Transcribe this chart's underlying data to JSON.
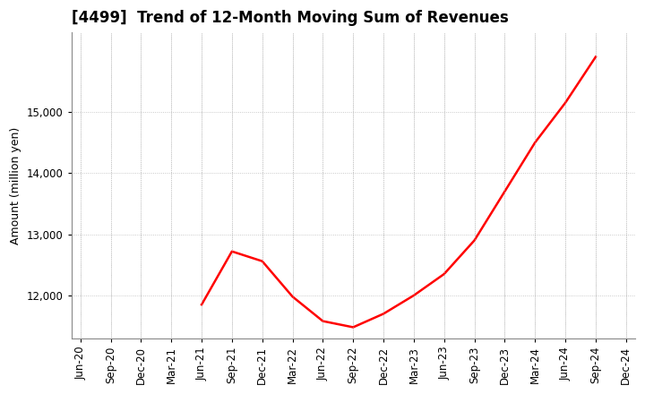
{
  "title": "[4499]  Trend of 12-Month Moving Sum of Revenues",
  "ylabel": "Amount (million yen)",
  "line_color": "#FF0000",
  "line_width": 1.8,
  "background_color": "#FFFFFF",
  "grid_color": "#BBBBBB",
  "x_labels": [
    "Jun-20",
    "Sep-20",
    "Dec-20",
    "Mar-21",
    "Jun-21",
    "Sep-21",
    "Dec-21",
    "Mar-22",
    "Jun-22",
    "Sep-22",
    "Dec-22",
    "Mar-23",
    "Jun-23",
    "Sep-23",
    "Dec-23",
    "Mar-24",
    "Jun-24",
    "Sep-24",
    "Dec-24"
  ],
  "data_x_indices": [
    4,
    5,
    6,
    7,
    8,
    9,
    10,
    11,
    12,
    13,
    14,
    15,
    16,
    17
  ],
  "data_y_values": [
    11850,
    12720,
    12560,
    11980,
    11580,
    11480,
    11700,
    12000,
    12350,
    12900,
    13700,
    14500,
    15150,
    15900
  ],
  "ylim_min": 11300,
  "ylim_max": 16300,
  "yticks": [
    12000,
    13000,
    14000,
    15000
  ],
  "title_fontsize": 12,
  "title_fontweight": "bold",
  "axis_label_fontsize": 9,
  "tick_fontsize": 8.5
}
